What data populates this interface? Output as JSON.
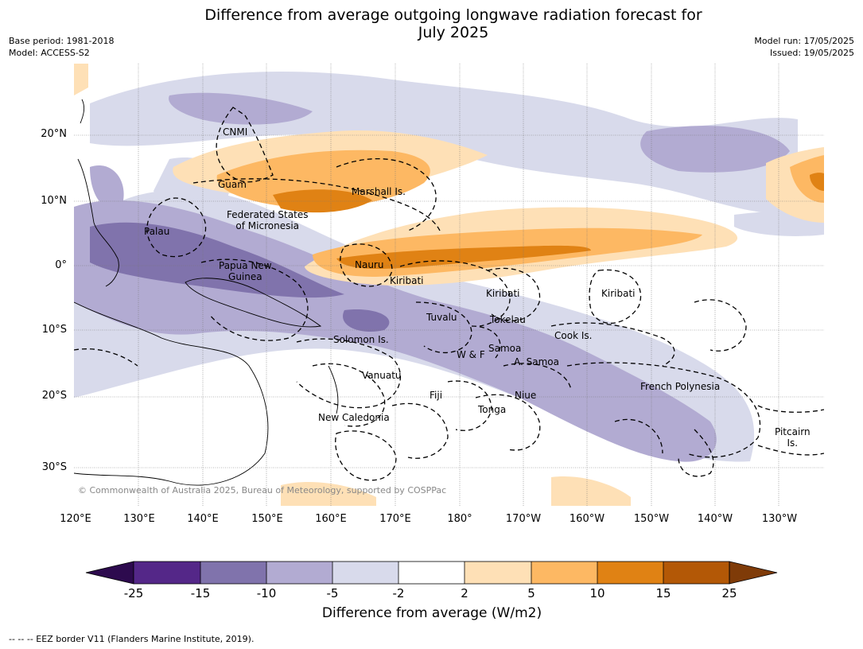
{
  "header": {
    "title_line1": "Difference from average outgoing longwave radiation forecast for",
    "title_line2": "July 2025",
    "base_period": "Base period: 1981-2018",
    "model": "Model: ACCESS-S2",
    "model_run": "Model run: 17/05/2025",
    "issued": "Issued: 19/05/2025"
  },
  "map": {
    "lat_labels": [
      "20°N",
      "10°N",
      "0°",
      "10°S",
      "20°S",
      "30°S"
    ],
    "lon_labels": [
      "120°E",
      "130°E",
      "140°E",
      "150°E",
      "160°E",
      "170°E",
      "180°",
      "170°W",
      "160°W",
      "150°W",
      "140°W",
      "130°W"
    ],
    "places": {
      "cnmi": "CNMI",
      "guam": "Guam",
      "marshall": "Marshall Is.",
      "fsm_line1": "Federated States",
      "fsm_line2": "of Micronesia",
      "palau": "Palau",
      "png_line1": "Papua New",
      "png_line2": "Guinea",
      "nauru": "Nauru",
      "kiribati_west": "Kiribati",
      "kiribati_central": "Kiribati",
      "kiribati_east": "Kiribati",
      "tuvalu": "Tuvalu",
      "tokelau": "Tokelau",
      "solomon": "Solomon Is.",
      "cook": "Cook Is.",
      "samoa": "Samoa",
      "wf": "W & F",
      "am_samoa": "A. Samoa",
      "vanuatu": "Vanuatu",
      "fiji": "Fiji",
      "niue": "Niue",
      "tonga": "Tonga",
      "french_polynesia": "French Polynesia",
      "new_caledonia": "New Caledonia",
      "pitcairn_line1": "Pitcairn",
      "pitcairn_line2": "Is."
    },
    "copyright": "© Commonwealth of Australia 2025, Bureau of Meteorology, supported by COSPPac"
  },
  "colorbar": {
    "ticks": [
      "-25",
      "-15",
      "-10",
      "-5",
      "-2",
      "2",
      "5",
      "10",
      "15",
      "25"
    ],
    "label": "Difference from average (W/m2)",
    "colors": {
      "below_min": "#2d0a4e",
      "c1": "#542788",
      "c2": "#8073ac",
      "c3": "#b2abd2",
      "c4": "#d8daeb",
      "c5": "#ffffff",
      "c6": "#fee0b6",
      "c7": "#fdb863",
      "c8": "#e08214",
      "c9": "#b35806",
      "above_max": "#7f3b08"
    }
  },
  "footer": {
    "legend_line": "--  --  -- EEZ border V11 (Flanders Marine Institute, 2019)."
  }
}
